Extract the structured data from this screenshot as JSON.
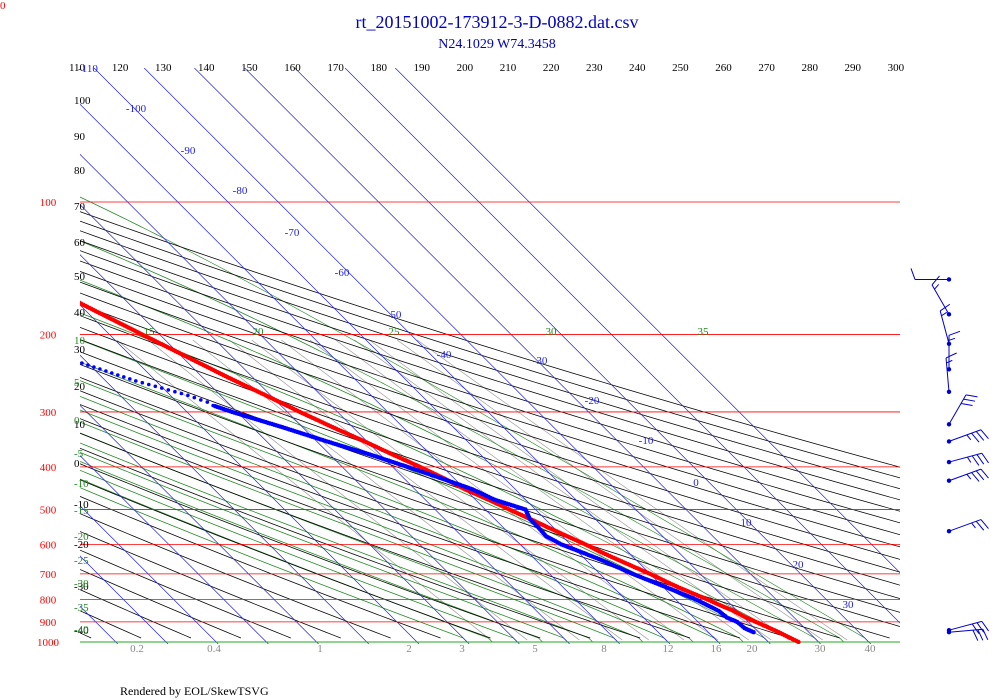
{
  "corner_label": "0",
  "footer_text": "Rendered by EOL/SkewTSVG",
  "colors": {
    "title": "#0000cc",
    "isobar": "#ff0000",
    "isotherm": "#2222dd",
    "dry_adiabat": "#000000",
    "moist_adiabat": "#228822",
    "mixing_ratio": "#999999",
    "temperature": "#ff0000",
    "dewpoint": "#0000ff",
    "wind": "#0000cc"
  },
  "chart_data": {
    "type": "skew-t",
    "title": "rt_20151002-173912-3-D-0882.dat.csv",
    "subtitle": "N24.1029 W74.3458",
    "pressure_levels": [
      100,
      200,
      300,
      400,
      500,
      600,
      700,
      800,
      900,
      1000
    ],
    "potential_temperature_labels": [
      110,
      120,
      130,
      140,
      150,
      160,
      170,
      180,
      190,
      200,
      210,
      220,
      230,
      240,
      250,
      260,
      270,
      280,
      290,
      300
    ],
    "isotherm_labels": [
      -110,
      -100,
      -90,
      -80,
      -70,
      -60,
      -50,
      -40,
      -30,
      -20,
      -10,
      0,
      10,
      20,
      30
    ],
    "isotherm_label_positions": [
      [
        88,
        72
      ],
      [
        136,
        112
      ],
      [
        188,
        154
      ],
      [
        240,
        194
      ],
      [
        292,
        236
      ],
      [
        342,
        276
      ],
      [
        394,
        318
      ],
      [
        444,
        358
      ],
      [
        540,
        364
      ],
      [
        592,
        404
      ],
      [
        646,
        444
      ],
      [
        696,
        486
      ],
      [
        746,
        526
      ],
      [
        798,
        568
      ],
      [
        848,
        608
      ]
    ],
    "left_temperature_labels": [
      "100",
      "90",
      "80",
      "70",
      "60",
      "50",
      "40",
      "30",
      "20",
      "10",
      "0",
      "-10",
      "-20",
      "-30",
      "-40"
    ],
    "left_temperature_label_y": [
      104,
      140,
      174,
      210,
      246,
      280,
      316,
      353,
      390,
      428,
      467,
      508,
      548,
      590,
      634
    ],
    "moist_adiabat_labels": [
      "10",
      "5",
      "0",
      "-5",
      "-10",
      "-15",
      "-20",
      "-25",
      "-30",
      "-35",
      "-40"
    ],
    "moist_adiabat_label_y": [
      344,
      386,
      424,
      457,
      487,
      514,
      540,
      564,
      587,
      611,
      633
    ],
    "moist_top_labels": [
      "15",
      "20",
      "25",
      "30",
      "35"
    ],
    "moist_top_label_x": [
      149,
      258,
      394,
      551,
      703
    ],
    "mixing_ratio_labels": [
      "0.2",
      "0.4",
      "1",
      "2",
      "3",
      "5",
      "8",
      "12",
      "16",
      "20",
      "30",
      "40"
    ],
    "mixing_ratio_label_x": [
      137,
      214,
      320,
      409,
      462,
      535,
      604,
      668,
      716,
      752,
      820,
      870
    ],
    "temperature_profile": [
      [
        1000,
        26.0
      ],
      [
        975,
        25.0
      ],
      [
        950,
        24.0
      ],
      [
        925,
        22.8
      ],
      [
        900,
        21.5
      ],
      [
        875,
        20.2
      ],
      [
        850,
        19.3
      ],
      [
        825,
        17.7
      ],
      [
        800,
        16.3
      ],
      [
        775,
        14.6
      ],
      [
        750,
        12.9
      ],
      [
        725,
        11.4
      ],
      [
        700,
        10.0
      ],
      [
        675,
        8.2
      ],
      [
        650,
        6.4
      ],
      [
        625,
        4.6
      ],
      [
        600,
        3.0
      ],
      [
        575,
        1.0
      ],
      [
        550,
        -1.0
      ],
      [
        525,
        -3.0
      ],
      [
        500,
        -5.2
      ],
      [
        475,
        -7.4
      ],
      [
        450,
        -10.0
      ],
      [
        425,
        -12.0
      ],
      [
        400,
        -14.5
      ],
      [
        375,
        -17.5
      ],
      [
        350,
        -20.5
      ],
      [
        325,
        -24.0
      ],
      [
        300,
        -27.5
      ],
      [
        275,
        -31.0
      ],
      [
        250,
        -35.0
      ],
      [
        225,
        -39.0
      ],
      [
        200,
        -43.5
      ],
      [
        175,
        -48.5
      ],
      [
        150,
        -54.0
      ],
      [
        125,
        -61.5
      ],
      [
        110,
        -68.0
      ],
      [
        100,
        -74.0
      ],
      [
        95,
        -77.0
      ],
      [
        92,
        -79.0
      ],
      [
        88,
        -76.0
      ],
      [
        86,
        -74.0
      ]
    ],
    "temperature_upper_dots": [
      [
        84,
        -66.0
      ],
      [
        83,
        -60.0
      ],
      [
        80,
        -52.0
      ],
      [
        79,
        -48.0
      ],
      [
        78,
        -45.0
      ],
      [
        76,
        -42.0
      ],
      [
        74,
        -40.0
      ],
      [
        73,
        -38.0
      ],
      [
        72,
        -37.0
      ],
      [
        71,
        -36.0
      ]
    ],
    "dewpoint_profile": [
      [
        950,
        19.0
      ],
      [
        930,
        18.0
      ],
      [
        900,
        17.8
      ],
      [
        880,
        16.6
      ],
      [
        850,
        16.3
      ],
      [
        800,
        14.0
      ],
      [
        750,
        10.5
      ],
      [
        700,
        6.5
      ],
      [
        650,
        3.0
      ],
      [
        600,
        -1.8
      ],
      [
        575,
        -3.2
      ],
      [
        550,
        -3.0
      ],
      [
        525,
        -3.0
      ],
      [
        500,
        -2.0
      ],
      [
        475,
        -6.2
      ],
      [
        450,
        -8.5
      ],
      [
        425,
        -12.5
      ],
      [
        400,
        -17.0
      ],
      [
        375,
        -22.0
      ],
      [
        350,
        -28.0
      ],
      [
        325,
        -34.0
      ],
      [
        300,
        -41.0
      ],
      [
        290,
        -43.5
      ],
      [
        285,
        -44.0
      ],
      [
        275,
        -46.5
      ],
      [
        255,
        -54.0
      ],
      [
        230,
        -62.0
      ],
      [
        200,
        -72.0
      ],
      [
        180,
        -78.0
      ],
      [
        165,
        -83.0
      ],
      [
        150,
        -88.0
      ],
      [
        140,
        -92.0
      ],
      [
        130,
        -96.0
      ],
      [
        120,
        -101.0
      ],
      [
        112,
        -105.0
      ],
      [
        106,
        -110.0
      ]
    ],
    "wind_barbs": [
      {
        "pressure": 150,
        "speed_kt": 10,
        "direction_deg": 270
      },
      {
        "pressure": 180,
        "speed_kt": 15,
        "direction_deg": 330
      },
      {
        "pressure": 210,
        "speed_kt": 15,
        "direction_deg": 345
      },
      {
        "pressure": 240,
        "speed_kt": 15,
        "direction_deg": 0
      },
      {
        "pressure": 270,
        "speed_kt": 15,
        "direction_deg": 355
      },
      {
        "pressure": 320,
        "speed_kt": 30,
        "direction_deg": 30
      },
      {
        "pressure": 350,
        "speed_kt": 35,
        "direction_deg": 70
      },
      {
        "pressure": 390,
        "speed_kt": 35,
        "direction_deg": 75
      },
      {
        "pressure": 430,
        "speed_kt": 35,
        "direction_deg": 70
      },
      {
        "pressure": 560,
        "speed_kt": 25,
        "direction_deg": 70
      },
      {
        "pressure": 940,
        "speed_kt": 30,
        "direction_deg": 75
      },
      {
        "pressure": 950,
        "speed_kt": 30,
        "direction_deg": 85
      }
    ],
    "axes": {
      "pressure_range": [
        100,
        1000
      ],
      "pressure_scale": "log",
      "temperature_range": [
        -110,
        40
      ],
      "skew": "45-degree"
    },
    "grid": true
  }
}
